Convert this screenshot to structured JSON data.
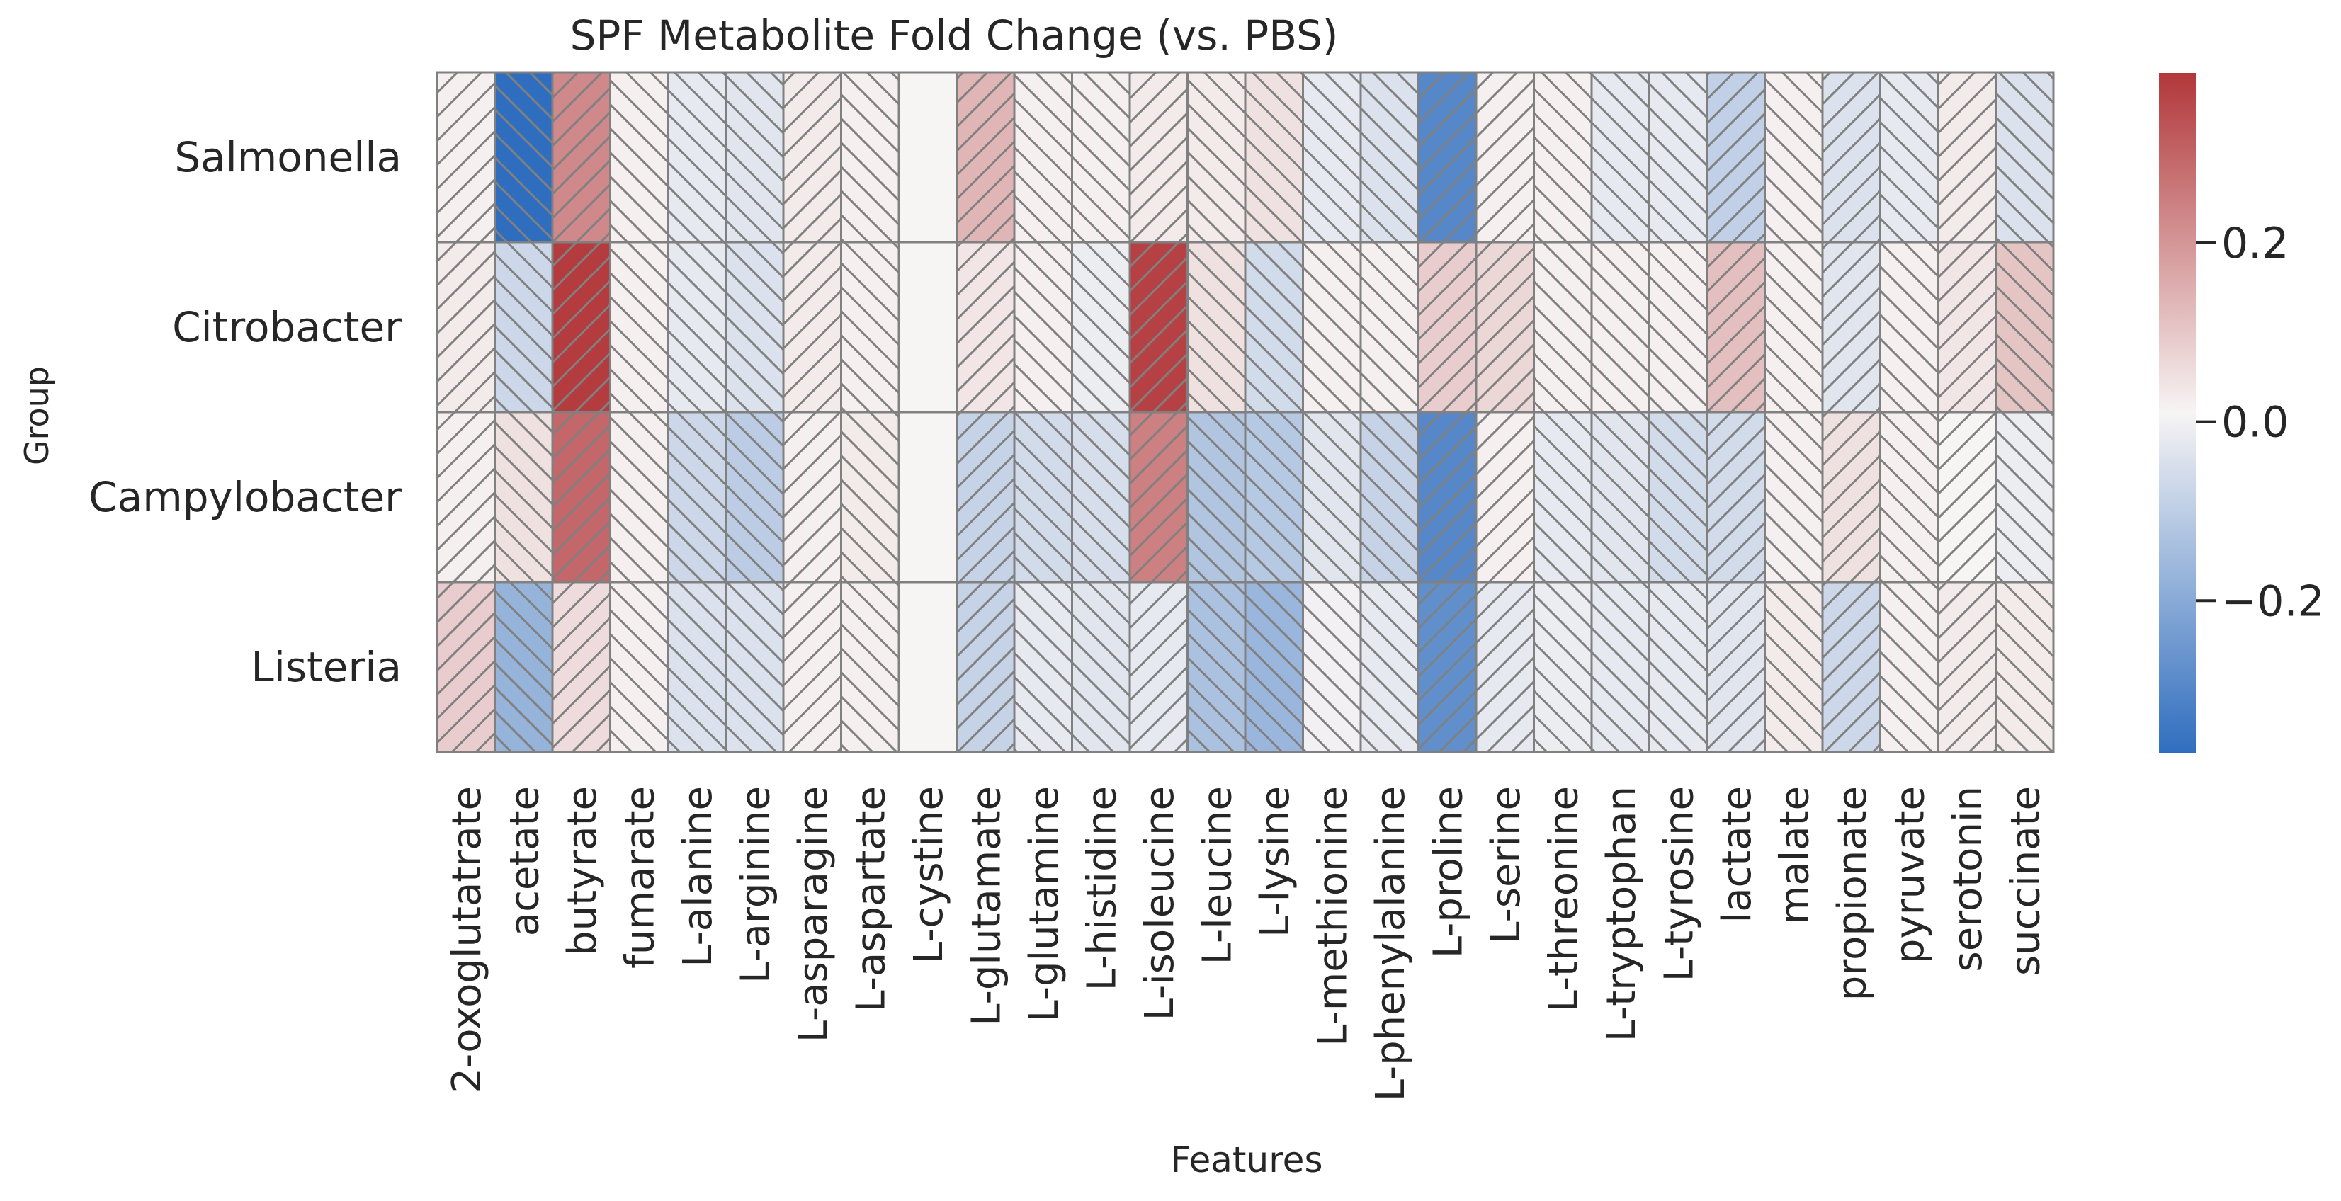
{
  "chart_data": {
    "type": "heatmap",
    "title": "SPF Metabolite Fold Change (vs. PBS)",
    "xlabel": "Features",
    "ylabel": "Group",
    "rows": [
      "Salmonella",
      "Citrobacter",
      "Campylobacter",
      "Listeria"
    ],
    "columns": [
      "2-oxoglutatrate",
      "acetate",
      "butyrate",
      "fumarate",
      "L-alanine",
      "L-arginine",
      "L-asparagine",
      "L-aspartate",
      "L-cystine",
      "L-glutamate",
      "L-glutamine",
      "L-histidine",
      "L-isoleucine",
      "L-leucine",
      "L-lysine",
      "L-methionine",
      "L-phenylalanine",
      "L-proline",
      "L-serine",
      "L-threonine",
      "L-tryptophan",
      "L-tyrosine",
      "lactate",
      "malate",
      "propionate",
      "pyruvate",
      "serotonin",
      "succinate"
    ],
    "hatch": [
      "/",
      "\\",
      "/",
      "\\",
      "\\",
      "\\",
      "/",
      "\\",
      "none",
      "/",
      "\\",
      "\\",
      "/",
      "\\",
      "\\",
      "\\",
      "\\",
      "/",
      "/",
      "\\",
      "\\",
      "\\",
      "/",
      "\\",
      "/",
      "\\",
      "/",
      "\\"
    ],
    "values": [
      [
        0.01,
        -0.37,
        0.22,
        0.01,
        -0.03,
        -0.04,
        0.02,
        0.01,
        0.0,
        0.13,
        0.01,
        0.01,
        0.02,
        0.02,
        0.04,
        -0.03,
        -0.05,
        -0.3,
        0.01,
        0.01,
        -0.03,
        -0.03,
        -0.1,
        0.01,
        -0.05,
        -0.03,
        0.02,
        -0.05
      ],
      [
        0.02,
        -0.08,
        0.38,
        0.01,
        -0.03,
        -0.05,
        0.02,
        0.01,
        0.0,
        0.03,
        0.01,
        -0.02,
        0.37,
        0.04,
        -0.07,
        0.01,
        0.01,
        0.08,
        0.06,
        0.01,
        0.01,
        0.01,
        0.11,
        0.01,
        -0.04,
        0.01,
        0.03,
        0.1
      ],
      [
        0.01,
        0.04,
        0.29,
        0.01,
        -0.08,
        -0.11,
        0.01,
        0.02,
        0.0,
        -0.09,
        -0.07,
        -0.06,
        0.24,
        -0.13,
        -0.12,
        -0.04,
        -0.09,
        -0.3,
        0.01,
        -0.03,
        -0.04,
        -0.07,
        -0.07,
        0.01,
        0.04,
        0.01,
        0.0,
        -0.02
      ],
      [
        0.08,
        -0.18,
        0.05,
        0.01,
        -0.05,
        -0.05,
        0.01,
        0.01,
        0.0,
        -0.09,
        -0.03,
        -0.04,
        -0.03,
        -0.14,
        -0.17,
        -0.01,
        -0.03,
        -0.28,
        -0.03,
        -0.02,
        -0.03,
        -0.03,
        -0.04,
        0.02,
        -0.08,
        0.01,
        0.02,
        0.02
      ]
    ],
    "colorbar": {
      "min": -0.37,
      "max": 0.39,
      "ticks": [
        0.2,
        0.0,
        -0.2
      ],
      "tick_labels": [
        "0.2",
        "0.0",
        "−0.2"
      ],
      "low_color": "#2f6ebf",
      "mid_color": "#f7f4f4",
      "high_color": "#b2373a"
    },
    "grid_color": "#808080"
  }
}
